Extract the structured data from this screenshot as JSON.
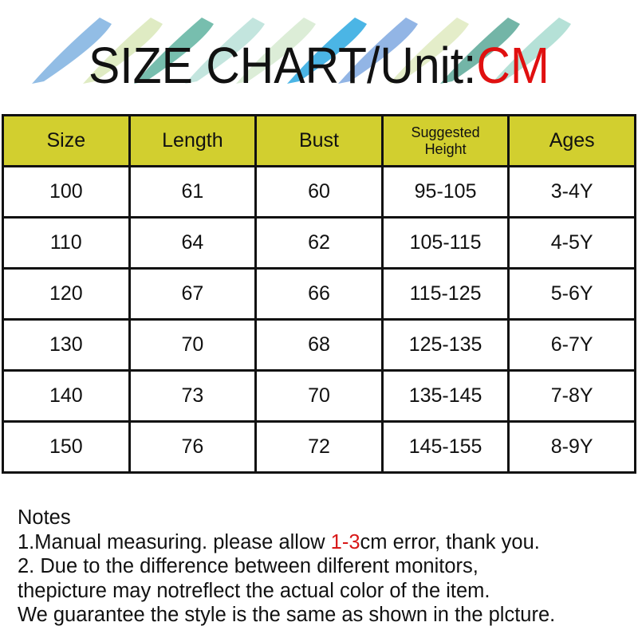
{
  "title": {
    "text": "SIZE CHART/Unit:",
    "unit": "CM",
    "unit_color": "#e01010"
  },
  "header_color": "#d2cf2f",
  "table": {
    "headers": [
      "Size",
      "Length",
      "Bust",
      "Suggested Height",
      "Ages"
    ],
    "header_lines": {
      "suggested_height": [
        "Suggested",
        "Height"
      ]
    },
    "rows": [
      [
        "100",
        "61",
        "60",
        "95-105",
        "3-4Y"
      ],
      [
        "110",
        "64",
        "62",
        "105-115",
        "4-5Y"
      ],
      [
        "120",
        "67",
        "66",
        "115-125",
        "5-6Y"
      ],
      [
        "130",
        "70",
        "68",
        "125-135",
        "6-7Y"
      ],
      [
        "140",
        "73",
        "70",
        "135-145",
        "7-8Y"
      ],
      [
        "150",
        "76",
        "72",
        "145-155",
        "8-9Y"
      ]
    ]
  },
  "notes": {
    "heading": "Notes",
    "line1_pre": "1.Manual measuring. please allow ",
    "line1_highlight": "1-3",
    "line1_post": "cm error, thank you.",
    "line2": "2. Due to the difference between dilferent monitors,",
    "line3": "thepicture may notreflect the actual color of the item.",
    "line4": "We guarantee the style is the same as shown in the plcture."
  },
  "brush_colors": [
    "#7fb2e0",
    "#d9e8b8",
    "#5fb3a0",
    "#b8e0d8",
    "#d6ead0",
    "#2ba8e0",
    "#7fa8e0",
    "#dfeac0",
    "#5aa898",
    "#a8dcd0"
  ]
}
